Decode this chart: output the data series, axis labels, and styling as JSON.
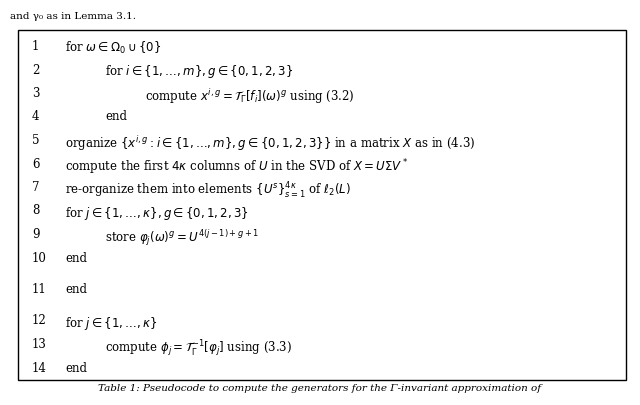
{
  "title": "",
  "background_color": "#ffffff",
  "box_color": "#ffffff",
  "border_color": "#000000",
  "text_color": "#000000",
  "caption": "Table 1: Pseudocode to compute the generators for the Γ-invariant approximation of",
  "top_text": "and γ₀ as in Lemma 3.1.",
  "lines": [
    {
      "num": "1",
      "indent": 0,
      "text": "for $\\omega \\in \\Omega_0 \\cup \\{0\\}$"
    },
    {
      "num": "2",
      "indent": 1,
      "text": "for $i \\in \\{1,\\ldots,m\\}, g \\in \\{0,1,2,3\\}$"
    },
    {
      "num": "3",
      "indent": 2,
      "text": "compute $x^{i,g} = \\mathcal{T}_{\\Gamma}[f_i](\\omega)^g$ using (3.2)"
    },
    {
      "num": "4",
      "indent": 1,
      "text": "end"
    },
    {
      "num": "5",
      "indent": 0,
      "text": "organize $\\{x^{i,g}: i \\in \\{1,\\ldots,m\\}, g \\in \\{0,1,2,3\\}\\}$ in a matrix $X$ as in (4.3)"
    },
    {
      "num": "6",
      "indent": 0,
      "text": "compute the first $4\\kappa$ columns of $U$ in the SVD of $X = U\\Sigma V^*$"
    },
    {
      "num": "7",
      "indent": 0,
      "text": "re-organize them into elements $\\{U^s\\}_{s=1}^{4\\kappa}$ of $\\ell_2(L)$"
    },
    {
      "num": "8",
      "indent": 0,
      "text": "for $j \\in \\{1,\\ldots,\\kappa\\}, g \\in \\{0,1,2,3\\}$"
    },
    {
      "num": "9",
      "indent": 1,
      "text": "store $\\varphi_j(\\omega)^g = U^{4(j-1)+g+1}$"
    },
    {
      "num": "10",
      "indent": 0,
      "text": "end"
    },
    {
      "num": "11",
      "indent": 0,
      "text": "end",
      "extra_space_before": true
    },
    {
      "num": "12",
      "indent": 0,
      "text": "for $j \\in \\{1,\\ldots,\\kappa\\}$",
      "extra_space_before": true
    },
    {
      "num": "13",
      "indent": 1,
      "text": "compute $\\phi_j = \\mathcal{T}_{\\Gamma}^{-1}[\\varphi_j]$ using (3.3)"
    },
    {
      "num": "14",
      "indent": 0,
      "text": "end"
    }
  ]
}
